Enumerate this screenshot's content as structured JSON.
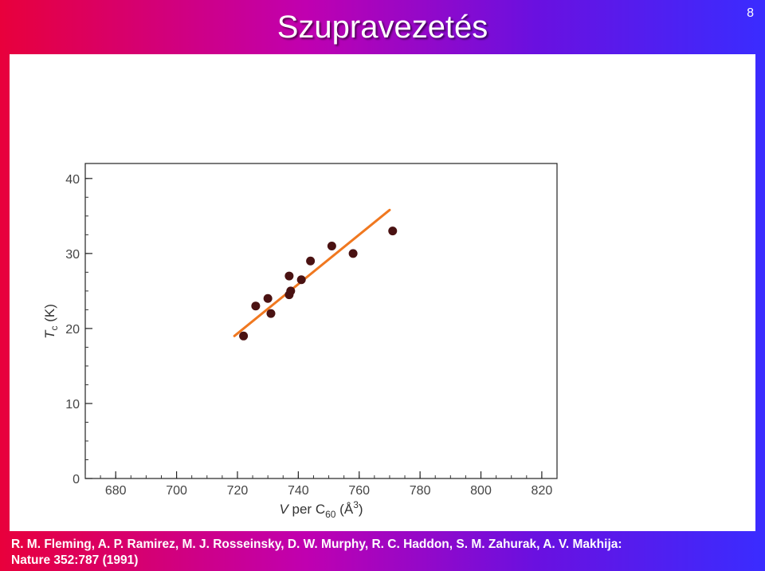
{
  "slide": {
    "title": "Szupravezetés",
    "page_number": "8",
    "citation_line1": "R. M. Fleming, A. P. Ramirez, M. J. Rosseinsky, D. W. Murphy, R. C. Haddon, S. M. Zahurak, A. V. Makhija:",
    "citation_line2": "Nature 352:787 (1991)"
  },
  "chart_data": {
    "type": "scatter",
    "ylabel": "T",
    "ylabel_sub": "c",
    "ylabel_unit": " (K)",
    "xlabel_var": "V",
    "xlabel_text": " per C",
    "xlabel_sub": "60",
    "xlabel_unit": " (Å",
    "xlabel_sup": "3",
    "xlabel_close": ")",
    "xlim": [
      670,
      825
    ],
    "ylim": [
      0,
      42
    ],
    "xticks": [
      680,
      700,
      720,
      740,
      760,
      780,
      800,
      820
    ],
    "yticks": [
      0,
      10,
      20,
      30,
      40
    ],
    "x_minor_step": 5,
    "y_minor_step": 2.5,
    "marker_color": "#4a1212",
    "fit_color": "#f07820",
    "points": [
      {
        "x": 722,
        "y": 19.0
      },
      {
        "x": 726,
        "y": 23.0
      },
      {
        "x": 730,
        "y": 24.0
      },
      {
        "x": 731,
        "y": 22.0
      },
      {
        "x": 737,
        "y": 24.5
      },
      {
        "x": 737,
        "y": 27.0
      },
      {
        "x": 737.5,
        "y": 25.0
      },
      {
        "x": 741,
        "y": 26.5
      },
      {
        "x": 744,
        "y": 29.0
      },
      {
        "x": 751,
        "y": 31.0
      },
      {
        "x": 758,
        "y": 30.0
      },
      {
        "x": 771,
        "y": 33.0
      }
    ],
    "fit_line": {
      "x": [
        719,
        770
      ],
      "y": [
        19.0,
        35.8
      ]
    }
  }
}
